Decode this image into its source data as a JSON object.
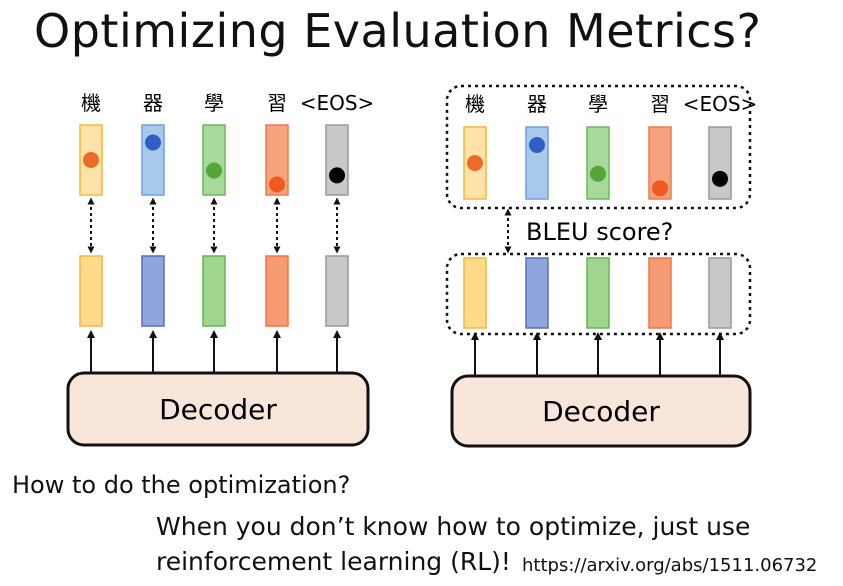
{
  "slide": {
    "title": "Optimizing Evaluation Metrics?",
    "question": "How to do the optimization?",
    "answer_line1": "When you don’t know how to optimize, just use",
    "answer_line2": "reinforcement learning (RL)!",
    "reference_url": "https://arxiv.org/abs/1511.06732"
  },
  "diagram": {
    "tokens": [
      "機",
      "器",
      "學",
      "習",
      "<EOS>"
    ],
    "decoder_label": "Decoder",
    "bleu_label": "BLEU score?",
    "token_colors": [
      {
        "fill": "#fde3a7",
        "stroke": "#f5b73a",
        "dot": "#ee6a2a",
        "dot_level": 0.5
      },
      {
        "fill": "#a9c9ec",
        "stroke": "#6f9fd6",
        "dot": "#2f5fc4",
        "dot_level": 0.25
      },
      {
        "fill": "#a6d99a",
        "stroke": "#6fb562",
        "dot": "#54a636",
        "dot_level": 0.65
      },
      {
        "fill": "#f7a27d",
        "stroke": "#ee7a4f",
        "dot": "#ee5a1f",
        "dot_level": 0.85
      },
      {
        "fill": "#c8c8c8",
        "stroke": "#999999",
        "dot": "#000000",
        "dot_level": 0.72
      }
    ],
    "hidden_colors": [
      {
        "fill": "#fddb8a",
        "stroke": "#f3b73a"
      },
      {
        "fill": "#8ea6dc",
        "stroke": "#5a6fba"
      },
      {
        "fill": "#9fd58f",
        "stroke": "#6bb05a"
      },
      {
        "fill": "#f69a74",
        "stroke": "#ea7848"
      },
      {
        "fill": "#c8c8c8",
        "stroke": "#999999"
      }
    ],
    "decoder_fill": "#f9e6da",
    "decoder_stroke": "#111111"
  }
}
